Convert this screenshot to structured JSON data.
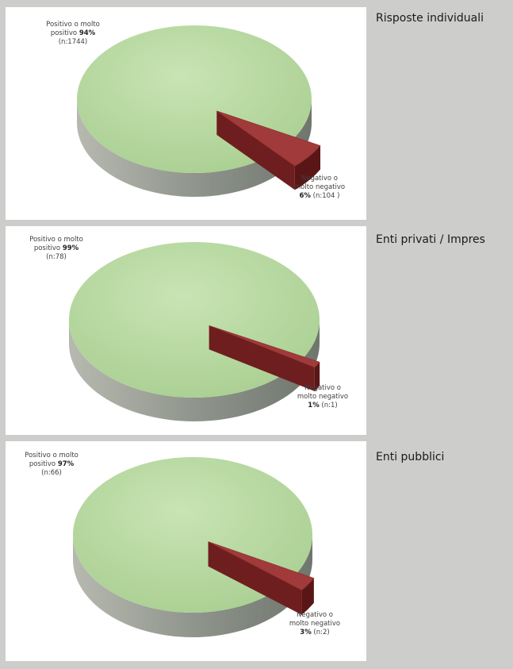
{
  "chart_data": [
    {
      "type": "pie",
      "section_label": "Risposte individuali",
      "slices": [
        {
          "name": "Positivo o molto positivo",
          "label_line1": "Positivo  o molto",
          "label_line2_prefix": "positivo ",
          "percent_text": "94%",
          "count_text": "(n:1744)",
          "value": 1744,
          "percent": 94,
          "color": "#b7d8a0"
        },
        {
          "name": "Negativo o molto negativo",
          "label_line1": "Negativo o",
          "label_line2_prefix": "molto negativo",
          "percent_text": "6%",
          "count_text": " (n:104 )",
          "value": 104,
          "percent": 6,
          "color": "#a13a3a"
        }
      ]
    },
    {
      "type": "pie",
      "section_label": "Enti privati / Impres",
      "slices": [
        {
          "name": "Positivo o molto positivo",
          "label_line1": "Positivo o molto",
          "label_line2_prefix": "positivo  ",
          "percent_text": "99%",
          "count_text": "(n:78)",
          "value": 78,
          "percent": 99,
          "color": "#b7d8a0"
        },
        {
          "name": "Negativo o molto negativo",
          "label_line1": "Negativo o",
          "label_line2_prefix": "molto negativo",
          "percent_text": "1%",
          "count_text": " (n:1)",
          "value": 1,
          "percent": 1,
          "color": "#a13a3a"
        }
      ]
    },
    {
      "type": "pie",
      "section_label": "Enti pubblici",
      "slices": [
        {
          "name": "Positivo o molto positivo",
          "label_line1": "Positivo o molto",
          "label_line2_prefix": "positivo ",
          "percent_text": "97%",
          "count_text": "(n:66)",
          "value": 66,
          "percent": 97,
          "color": "#b7d8a0"
        },
        {
          "name": "Negativo o molto negativo",
          "label_line1": "Negativo o",
          "label_line2_prefix": "molto negativo",
          "percent_text": "3%",
          "count_text": " (n:2)",
          "value": 2,
          "percent": 3,
          "color": "#a13a3a"
        }
      ]
    }
  ]
}
